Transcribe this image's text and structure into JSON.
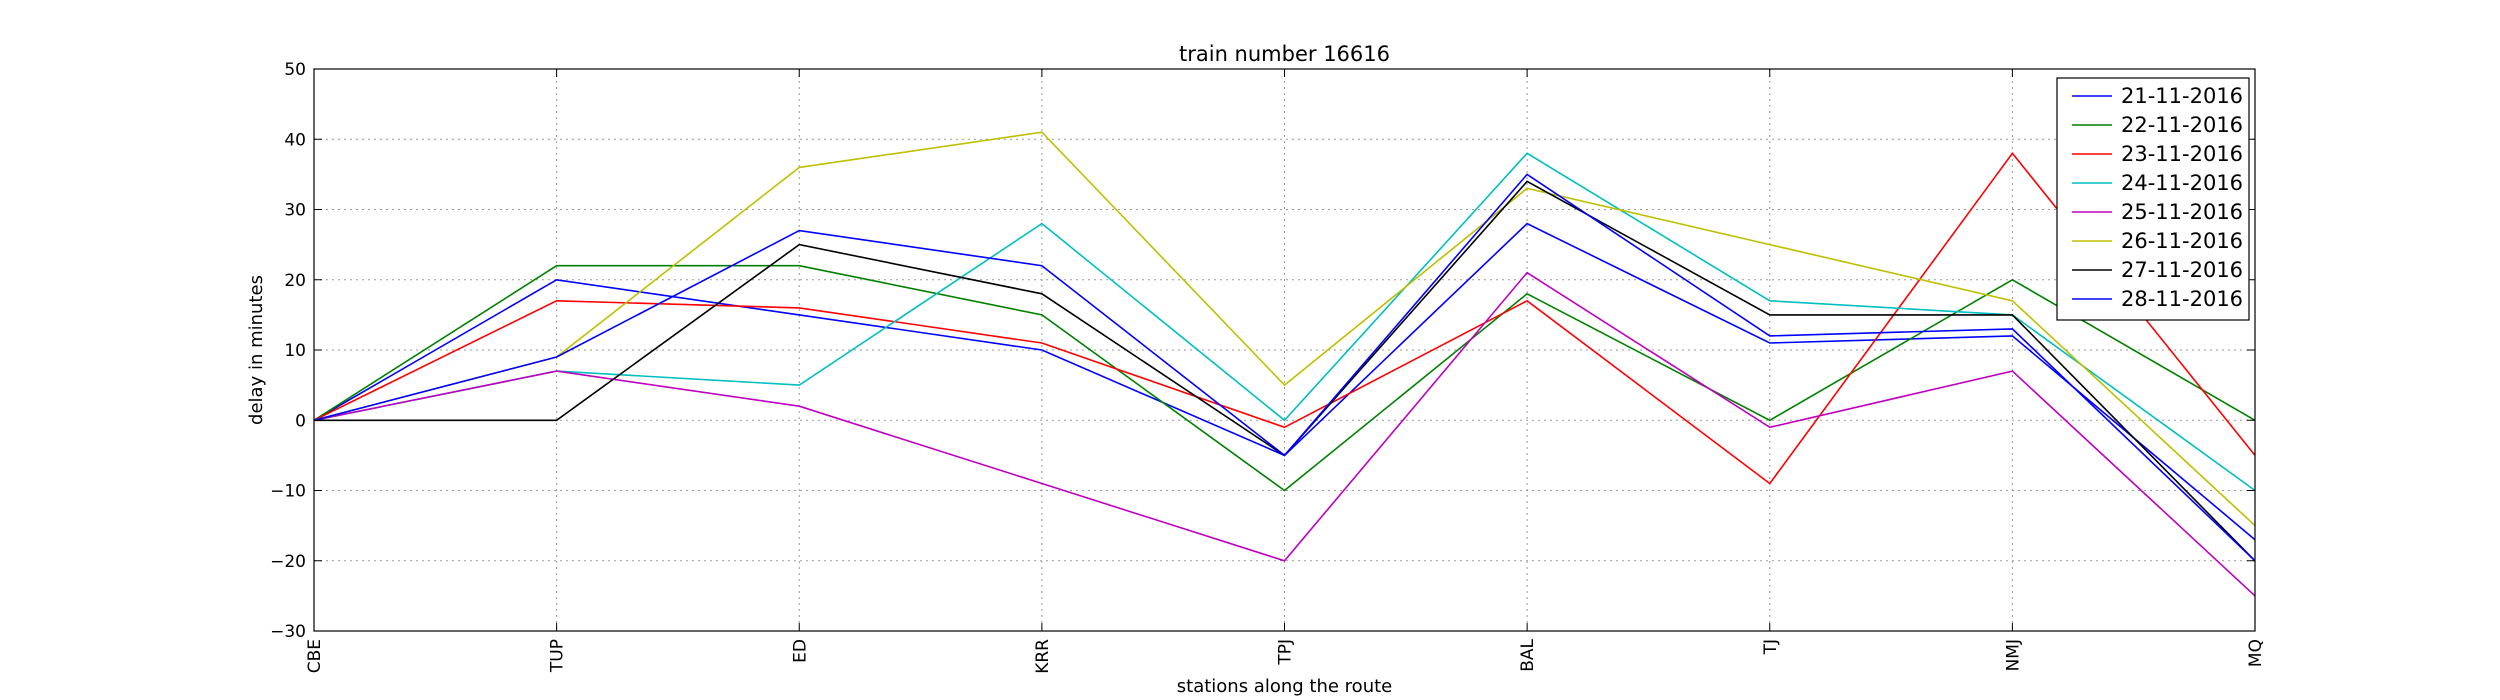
{
  "chart_data": {
    "type": "line",
    "title": "train number 16616",
    "xlabel": "stations along the route",
    "ylabel": "delay in minutes",
    "categories": [
      "CBE",
      "TUP",
      "ED",
      "KRR",
      "TPJ",
      "BAL",
      "TJ",
      "NMJ",
      "MQ"
    ],
    "ylim": [
      -30,
      50
    ],
    "yticks": [
      -30,
      -20,
      -10,
      0,
      10,
      20,
      30,
      40,
      50
    ],
    "grid": true,
    "legend_position": "top-right",
    "series": [
      {
        "name": "21-11-2016",
        "color": "#0000ff",
        "values": [
          0,
          20,
          15,
          10,
          -5,
          28,
          11,
          12,
          -17
        ]
      },
      {
        "name": "22-11-2016",
        "color": "#008000",
        "values": [
          0,
          22,
          22,
          15,
          -10,
          18,
          0,
          20,
          0
        ]
      },
      {
        "name": "23-11-2016",
        "color": "#ff0000",
        "values": [
          0,
          17,
          16,
          11,
          -1,
          17,
          -9,
          38,
          -5
        ]
      },
      {
        "name": "24-11-2016",
        "color": "#00bfbf",
        "values": [
          0,
          7,
          5,
          28,
          0,
          38,
          17,
          15,
          -10
        ]
      },
      {
        "name": "25-11-2016",
        "color": "#bf00bf",
        "values": [
          0,
          7,
          2,
          -9,
          -20,
          21,
          -1,
          7,
          -25
        ]
      },
      {
        "name": "26-11-2016",
        "color": "#bfbf00",
        "values": [
          0,
          9,
          36,
          41,
          5,
          33,
          25,
          17,
          -15
        ]
      },
      {
        "name": "27-11-2016",
        "color": "#000000",
        "values": [
          0,
          0,
          25,
          18,
          -5,
          34,
          15,
          15,
          -20
        ]
      },
      {
        "name": "28-11-2016",
        "color": "#0000ff",
        "values": [
          0,
          9,
          27,
          22,
          -5,
          35,
          12,
          13,
          -20
        ]
      }
    ]
  }
}
